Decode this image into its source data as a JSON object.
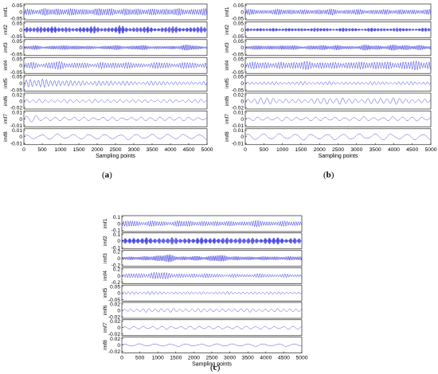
{
  "chart_data": [
    {
      "type": "line",
      "panel": "(a)",
      "caption": "a",
      "xlabel": "Sampling points",
      "xlim": [
        0,
        5000
      ],
      "xticks": [
        0,
        500,
        1000,
        1500,
        2000,
        2500,
        3000,
        3500,
        4000,
        4500,
        5000
      ],
      "line_color": "#3b3bdc",
      "series": [
        {
          "name": "imf1",
          "yticks": [
            0.05,
            0,
            -0.05
          ],
          "ylim": [
            -0.06,
            0.06
          ],
          "amplitude": 0.035,
          "period": 12,
          "env": [
            0.8,
            0.7,
            0.9,
            0.7,
            1.0,
            0.8,
            0.7,
            0.9,
            0.8,
            1.0,
            0.7,
            0.8,
            0.9,
            0.7,
            0.8,
            0.9,
            0.8,
            0.7,
            0.9,
            0.8
          ]
        },
        {
          "name": "imf2",
          "yticks": [
            0.05,
            0,
            -0.05
          ],
          "ylim": [
            -0.06,
            0.06
          ],
          "amplitude": 0.035,
          "period": 22,
          "env": [
            0.7,
            0.9,
            0.6,
            1.0,
            0.7,
            0.5,
            0.8,
            0.9,
            0.6,
            0.7,
            1.0,
            0.6,
            0.8,
            0.7,
            0.5,
            0.9,
            0.7,
            0.6,
            0.8,
            0.7
          ]
        },
        {
          "name": "imf3",
          "yticks": [
            0.05,
            0,
            -0.05
          ],
          "ylim": [
            -0.06,
            0.06
          ],
          "amplitude": 0.03,
          "period": 40,
          "env": [
            0.5,
            0.6,
            0.4,
            0.7,
            0.5,
            0.8,
            0.6,
            0.4,
            0.5,
            0.7,
            0.6,
            0.5,
            0.8,
            0.6,
            0.4,
            0.5,
            0.7,
            0.8,
            0.6,
            0.5
          ]
        },
        {
          "name": "imf4",
          "yticks": [
            0.05,
            0,
            -0.05
          ],
          "ylim": [
            -0.06,
            0.06
          ],
          "amplitude": 0.035,
          "period": 70,
          "env": [
            0.6,
            0.8,
            0.5,
            0.9,
            1.0,
            0.6,
            0.7,
            0.5,
            0.8,
            0.6,
            0.9,
            0.7,
            0.5,
            0.6,
            0.8,
            0.7,
            0.5,
            0.9,
            0.6,
            0.7
          ]
        },
        {
          "name": "imf5",
          "yticks": [
            0.05,
            0,
            -0.05
          ],
          "ylim": [
            -0.06,
            0.06
          ],
          "amplitude": 0.04,
          "period": 110,
          "env": [
            0.7,
            1.0,
            0.9,
            0.6,
            0.8,
            0.5,
            0.6,
            0.4,
            0.5,
            0.6,
            0.4,
            0.5,
            0.3,
            0.4,
            0.5,
            0.4,
            0.3,
            0.4,
            0.3,
            0.4
          ]
        },
        {
          "name": "imf6",
          "yticks": [
            0.02,
            0,
            -0.02
          ],
          "ylim": [
            -0.025,
            0.025
          ],
          "amplitude": 0.009,
          "period": 170,
          "env": [
            0.8,
            0.6,
            0.7,
            0.5,
            0.6,
            0.7,
            0.5,
            0.6,
            0.7,
            0.6,
            0.5,
            0.7,
            0.6,
            0.5,
            0.6,
            0.7,
            0.5,
            0.6,
            0.7,
            0.6
          ]
        },
        {
          "name": "imf7",
          "yticks": [
            0.01,
            0,
            -0.01
          ],
          "ylim": [
            -0.012,
            0.012
          ],
          "amplitude": 0.006,
          "period": 260,
          "env": [
            1.0,
            0.9,
            0.6,
            0.5,
            0.5,
            0.6,
            0.5,
            0.4,
            0.5,
            0.6,
            0.5,
            0.4,
            0.5,
            0.6,
            0.5,
            0.5,
            0.6,
            0.5,
            0.4,
            0.5
          ]
        },
        {
          "name": "imf8",
          "yticks": [
            0.01,
            0,
            -0.01
          ],
          "ylim": [
            -0.012,
            0.012
          ],
          "amplitude": 0.006,
          "period": 430,
          "env": [
            0.5,
            0.6,
            0.7,
            0.8,
            0.7,
            0.6,
            0.7,
            0.8,
            0.7,
            0.6,
            0.7,
            0.8,
            0.7,
            0.6,
            0.7,
            0.8,
            0.7,
            0.6,
            0.7,
            0.8
          ]
        }
      ]
    },
    {
      "type": "line",
      "panel": "(b)",
      "caption": "b",
      "xlabel": "Sampling points",
      "xlim": [
        0,
        5000
      ],
      "xticks": [
        0,
        500,
        1000,
        1500,
        2000,
        2500,
        3000,
        3500,
        4000,
        4500,
        5000
      ],
      "line_color": "#3b3bdc",
      "series": [
        {
          "name": "imf1",
          "yticks": [
            0.05,
            0,
            -0.05
          ],
          "ylim": [
            -0.06,
            0.06
          ],
          "amplitude": 0.03,
          "period": 12,
          "env": [
            0.7,
            0.8,
            0.6,
            0.7,
            0.9,
            0.7,
            0.6,
            0.8,
            0.7,
            0.9,
            0.6,
            0.7,
            0.8,
            0.6,
            0.7,
            0.8,
            0.7,
            0.6,
            0.8,
            0.7
          ]
        },
        {
          "name": "imf2",
          "yticks": [
            0.05,
            0,
            -0.05
          ],
          "ylim": [
            -0.06,
            0.06
          ],
          "amplitude": 0.025,
          "period": 22,
          "env": [
            0.6,
            0.7,
            0.5,
            0.6,
            0.7,
            0.5,
            0.6,
            0.7,
            0.6,
            0.5,
            0.7,
            0.6,
            0.5,
            0.7,
            0.6,
            0.6,
            0.7,
            0.5,
            0.6,
            0.7
          ]
        },
        {
          "name": "imf3",
          "yticks": [
            0.05,
            0,
            -0.05
          ],
          "ylim": [
            -0.06,
            0.06
          ],
          "amplitude": 0.03,
          "period": 40,
          "env": [
            0.6,
            0.7,
            0.5,
            0.8,
            0.6,
            0.7,
            0.5,
            0.6,
            0.8,
            0.7,
            0.6,
            0.5,
            0.7,
            0.8,
            0.6,
            0.7,
            0.9,
            0.7,
            0.6,
            0.7
          ]
        },
        {
          "name": "imf4",
          "yticks": [
            0.05,
            0,
            -0.05
          ],
          "ylim": [
            -0.06,
            0.06
          ],
          "amplitude": 0.04,
          "period": 70,
          "env": [
            0.6,
            0.7,
            0.8,
            0.6,
            0.7,
            0.8,
            0.9,
            0.7,
            0.8,
            0.6,
            0.7,
            0.8,
            0.7,
            0.9,
            0.8,
            0.7,
            0.8,
            0.9,
            1.0,
            0.8
          ]
        },
        {
          "name": "imf5",
          "yticks": [
            0.05,
            0,
            -0.05
          ],
          "ylim": [
            -0.06,
            0.06
          ],
          "amplitude": 0.025,
          "period": 110,
          "env": [
            0.4,
            0.5,
            0.6,
            0.5,
            0.4,
            0.5,
            0.6,
            0.4,
            0.5,
            0.6,
            0.5,
            0.4,
            0.5,
            0.6,
            0.5,
            0.4,
            0.5,
            0.6,
            0.5,
            0.4
          ]
        },
        {
          "name": "imf6",
          "yticks": [
            0.02,
            0,
            -0.02
          ],
          "ylim": [
            -0.025,
            0.025
          ],
          "amplitude": 0.012,
          "period": 170,
          "env": [
            0.6,
            0.9,
            1.0,
            0.8,
            0.6,
            0.5,
            0.6,
            0.7,
            0.9,
            1.0,
            0.9,
            0.7,
            0.6,
            0.8,
            0.9,
            1.0,
            0.8,
            0.6,
            0.5,
            0.6
          ]
        },
        {
          "name": "imf7",
          "yticks": [
            0.01,
            0,
            -0.01
          ],
          "ylim": [
            -0.012,
            0.012
          ],
          "amplitude": 0.005,
          "period": 260,
          "env": [
            0.5,
            0.6,
            0.5,
            0.6,
            0.7,
            0.6,
            0.5,
            0.6,
            0.7,
            0.6,
            0.5,
            0.6,
            0.7,
            0.6,
            0.5,
            0.7,
            0.8,
            0.7,
            0.6,
            0.7
          ]
        },
        {
          "name": "imf8",
          "yticks": [
            0.01,
            0,
            -0.01
          ],
          "ylim": [
            -0.012,
            0.012
          ],
          "amplitude": 0.007,
          "period": 430,
          "env": [
            0.6,
            0.7,
            0.8,
            0.7,
            0.6,
            0.7,
            0.8,
            0.7,
            0.6,
            0.7,
            0.8,
            0.7,
            0.6,
            0.7,
            0.8,
            0.7,
            0.6,
            0.7,
            0.8,
            0.7
          ]
        }
      ]
    },
    {
      "type": "line",
      "panel": "(c)",
      "caption": "c",
      "xlabel": "Sampling points",
      "xlim": [
        0,
        5000
      ],
      "xticks": [
        0,
        500,
        1000,
        1500,
        2000,
        2500,
        3000,
        3500,
        4000,
        4500,
        5000
      ],
      "line_color": "#3b3bdc",
      "series": [
        {
          "name": "imf1",
          "yticks": [
            0.1,
            0,
            -0.1
          ],
          "ylim": [
            -0.12,
            0.12
          ],
          "amplitude": 0.06,
          "period": 12,
          "env": [
            0.7,
            0.9,
            0.6,
            0.8,
            0.7,
            0.6,
            0.8,
            0.9,
            0.7,
            0.6,
            0.8,
            0.7,
            0.6,
            0.7,
            0.9,
            0.8,
            0.6,
            0.7,
            0.8,
            0.6
          ]
        },
        {
          "name": "imf2",
          "yticks": [
            0.1,
            0,
            -0.1
          ],
          "ylim": [
            -0.12,
            0.12
          ],
          "amplitude": 0.07,
          "period": 22,
          "env": [
            0.7,
            0.8,
            0.9,
            0.7,
            0.8,
            0.9,
            0.7,
            0.8,
            0.7,
            0.9,
            0.8,
            0.7,
            0.9,
            0.8,
            0.7,
            0.8,
            0.9,
            0.7,
            0.8,
            0.7
          ]
        },
        {
          "name": "imf3",
          "yticks": [
            0.2,
            0,
            -0.2
          ],
          "ylim": [
            -0.24,
            0.24
          ],
          "amplitude": 0.12,
          "period": 40,
          "env": [
            0.6,
            0.7,
            0.5,
            0.8,
            0.9,
            1.0,
            0.7,
            0.6,
            0.8,
            0.7,
            0.9,
            0.8,
            0.6,
            0.5,
            0.7,
            0.6,
            0.5,
            0.6,
            0.5,
            0.6
          ]
        },
        {
          "name": "imf4",
          "yticks": [
            0.2,
            0,
            -0.2
          ],
          "ylim": [
            -0.24,
            0.24
          ],
          "amplitude": 0.12,
          "period": 70,
          "env": [
            0.5,
            0.7,
            0.6,
            0.9,
            1.0,
            0.9,
            0.6,
            0.5,
            0.7,
            0.6,
            0.5,
            0.4,
            0.5,
            0.4,
            0.6,
            0.5,
            0.4,
            0.5,
            0.4,
            0.4
          ]
        },
        {
          "name": "imf5",
          "yticks": [
            0.05,
            0,
            -0.05
          ],
          "ylim": [
            -0.06,
            0.06
          ],
          "amplitude": 0.02,
          "period": 110,
          "env": [
            0.5,
            0.6,
            0.5,
            0.7,
            0.6,
            0.5,
            0.4,
            0.6,
            0.5,
            0.4,
            0.5,
            0.6,
            0.4,
            0.5,
            0.4,
            0.5,
            0.6,
            0.4,
            0.5,
            0.4
          ]
        },
        {
          "name": "imf6",
          "yticks": [
            0.02,
            0,
            -0.02
          ],
          "ylim": [
            -0.025,
            0.025
          ],
          "amplitude": 0.008,
          "period": 170,
          "env": [
            0.5,
            0.6,
            0.7,
            0.8,
            0.9,
            0.8,
            0.7,
            0.6,
            0.7,
            0.8,
            0.7,
            0.6,
            0.7,
            0.8,
            0.7,
            0.6,
            0.7,
            0.8,
            0.7,
            0.6
          ]
        },
        {
          "name": "imf7",
          "yticks": [
            0.02,
            0,
            -0.02
          ],
          "ylim": [
            -0.025,
            0.025
          ],
          "amplitude": 0.007,
          "period": 260,
          "env": [
            0.6,
            0.7,
            0.6,
            0.7,
            0.8,
            0.7,
            0.6,
            0.7,
            0.8,
            0.7,
            0.6,
            0.7,
            0.6,
            0.7,
            0.8,
            0.7,
            0.6,
            0.7,
            0.8,
            0.7
          ]
        },
        {
          "name": "imf8",
          "yticks": [
            0.02,
            0,
            -0.02
          ],
          "ylim": [
            -0.025,
            0.025
          ],
          "amplitude": 0.006,
          "period": 430,
          "env": [
            0.6,
            0.7,
            0.8,
            0.7,
            0.6,
            0.7,
            0.8,
            0.7,
            0.6,
            0.7,
            0.8,
            0.7,
            0.6,
            0.7,
            0.8,
            0.7,
            0.6,
            0.7,
            0.8,
            0.7
          ]
        }
      ]
    }
  ]
}
